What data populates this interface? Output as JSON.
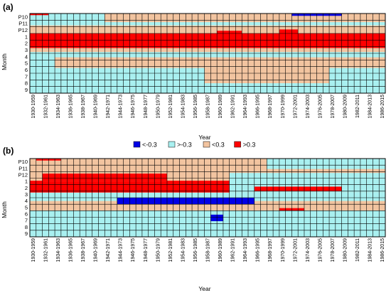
{
  "colors": {
    "lt_neg03": "#0000e6",
    "gt_neg03": "#a9f0f0",
    "lt_03": "#f2c4a0",
    "gt_03": "#ff0000",
    "grid": "#000000"
  },
  "legend": [
    {
      "label": "<-0.3",
      "color_key": "lt_neg03"
    },
    {
      "label": ">-0.3",
      "color_key": "gt_neg03"
    },
    {
      "label": "<0.3",
      "color_key": "lt_03"
    },
    {
      "label": ">0.3",
      "color_key": "gt_03"
    }
  ],
  "chart_data": [
    {
      "type": "heatmap",
      "panel": "(a)",
      "xlabel": "Year",
      "ylabel": "Month",
      "months": [
        "P10",
        "P11",
        "P12",
        "1",
        "2",
        "3",
        "4",
        "5",
        "6",
        "7",
        "8",
        "9"
      ],
      "x_tick_labels": [
        "1930-1959",
        "1932-1961",
        "1934-1963",
        "1936-1965",
        "1938-1967",
        "1940-1969",
        "1942-1971",
        "1944-1973",
        "1946-1975",
        "1948-1977",
        "1950-1979",
        "1952-1981",
        "1954-1983",
        "1956-1985",
        "1958-1987",
        "1960-1989",
        "1962-1991",
        "1964-1993",
        "1966-1995",
        "1968-1997",
        "1970-1999",
        "1972-2001",
        "1974-2003",
        "1976-2005",
        "1978-2007",
        "1980-2009",
        "1982-2011",
        "1984-2013",
        "1986-2015"
      ],
      "n_windows": 57,
      "regions": [
        {
          "class": "gt_neg03",
          "rows": [
            0,
            12
          ],
          "cols": [
            0,
            57
          ]
        },
        {
          "class": "lt_03",
          "rows": [
            0,
            1.3
          ],
          "cols": [
            12,
            57
          ]
        },
        {
          "class": "lt_03",
          "rows": [
            1.8,
            3
          ],
          "cols": [
            0,
            57
          ]
        },
        {
          "class": "gt_03",
          "rows": [
            3,
            5.2
          ],
          "cols": [
            0,
            57
          ]
        },
        {
          "class": "gt_03",
          "rows": [
            2.6,
            3.2
          ],
          "cols": [
            30,
            34
          ]
        },
        {
          "class": "gt_03",
          "rows": [
            2.4,
            3.2
          ],
          "cols": [
            40,
            43
          ]
        },
        {
          "class": "lt_03",
          "rows": [
            5.2,
            5.8
          ],
          "cols": [
            0,
            57
          ]
        },
        {
          "class": "lt_03",
          "rows": [
            6.6,
            8.2
          ],
          "cols": [
            4,
            57
          ]
        },
        {
          "class": "lt_03",
          "rows": [
            8.2,
            10.5
          ],
          "cols": [
            28,
            48
          ]
        },
        {
          "class": "gt_03",
          "rows": [
            0,
            0.25
          ],
          "cols": [
            0,
            3
          ]
        },
        {
          "class": "lt_neg03",
          "rows": [
            0,
            0.35
          ],
          "cols": [
            42,
            50
          ]
        }
      ]
    },
    {
      "type": "heatmap",
      "panel": "(b)",
      "xlabel": "Year",
      "ylabel": "Month",
      "months": [
        "P10",
        "P11",
        "P12",
        "1",
        "2",
        "3",
        "4",
        "5",
        "6",
        "7",
        "8",
        "9"
      ],
      "x_tick_labels": [
        "1930-1959",
        "1932-1961",
        "1934-1963",
        "1936-1965",
        "1938-1967",
        "1940-1969",
        "1942-1971",
        "1944-1973",
        "1946-1975",
        "1948-1977",
        "1950-1979",
        "1952-1981",
        "1954-1983",
        "1956-1985",
        "1958-1987",
        "1960-1989",
        "1962-1991",
        "1964-1993",
        "1966-1995",
        "1968-1997",
        "1970-1999",
        "1972-2001",
        "1974-2003",
        "1976-2005",
        "1978-2007",
        "1980-2009",
        "1982-2011",
        "1984-2013",
        "1986-2015"
      ],
      "n_windows": 57,
      "regions": [
        {
          "class": "lt_03",
          "rows": [
            0,
            12
          ],
          "cols": [
            0,
            57
          ]
        },
        {
          "class": "gt_neg03",
          "rows": [
            5.2,
            12
          ],
          "cols": [
            0,
            57
          ]
        },
        {
          "class": "gt_neg03",
          "rows": [
            2.2,
            5.2
          ],
          "cols": [
            32,
            57
          ]
        },
        {
          "class": "gt_neg03",
          "rows": [
            0,
            1.6
          ],
          "cols": [
            38,
            57
          ]
        },
        {
          "class": "gt_03",
          "rows": [
            2.3,
            3.4
          ],
          "cols": [
            2,
            22
          ]
        },
        {
          "class": "gt_03",
          "rows": [
            3.4,
            5.2
          ],
          "cols": [
            0,
            32
          ]
        },
        {
          "class": "gt_03",
          "rows": [
            4.3,
            5.0
          ],
          "cols": [
            36,
            50
          ]
        },
        {
          "class": "lt_03",
          "rows": [
            6.5,
            8.0
          ],
          "cols": [
            0,
            57
          ]
        },
        {
          "class": "lt_neg03",
          "rows": [
            6.0,
            7.0
          ],
          "cols": [
            14,
            36
          ]
        },
        {
          "class": "lt_neg03",
          "rows": [
            8.6,
            9.6
          ],
          "cols": [
            29,
            31
          ]
        },
        {
          "class": "gt_03",
          "rows": [
            7.6,
            8.0
          ],
          "cols": [
            40,
            44
          ]
        },
        {
          "class": "gt_03",
          "rows": [
            0,
            0.3
          ],
          "cols": [
            1,
            5
          ]
        }
      ]
    }
  ]
}
